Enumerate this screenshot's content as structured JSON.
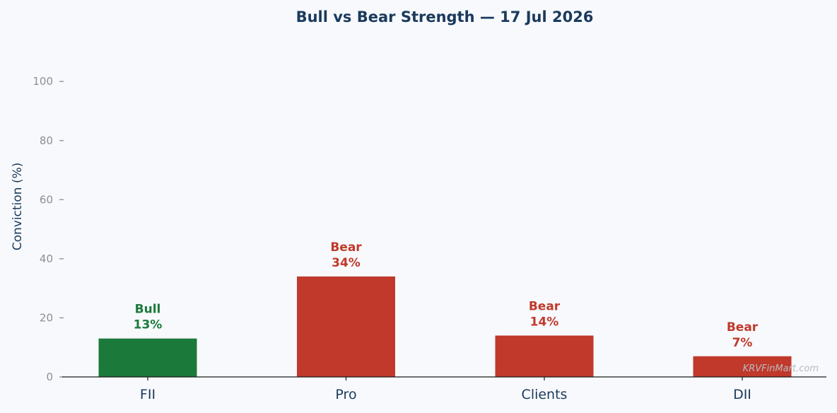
{
  "chart_data": {
    "type": "bar",
    "title": "Bull vs Bear Strength — 17 Jul 2026",
    "xlabel": "",
    "ylabel": "Conviction (%)",
    "ylim": [
      0,
      110
    ],
    "yticks": [
      0,
      20,
      40,
      60,
      80,
      100
    ],
    "grid": false,
    "categories": [
      "FII",
      "Pro",
      "Clients",
      "DII"
    ],
    "values": [
      13,
      34,
      14,
      7
    ],
    "sentiment": [
      "Bull",
      "Bear",
      "Bear",
      "Bear"
    ],
    "value_labels": [
      "13%",
      "34%",
      "14%",
      "7%"
    ],
    "colors": {
      "Bull": "#1b7a3a",
      "Bear": "#c0392b"
    }
  },
  "watermark": "KRVFinMart.com"
}
